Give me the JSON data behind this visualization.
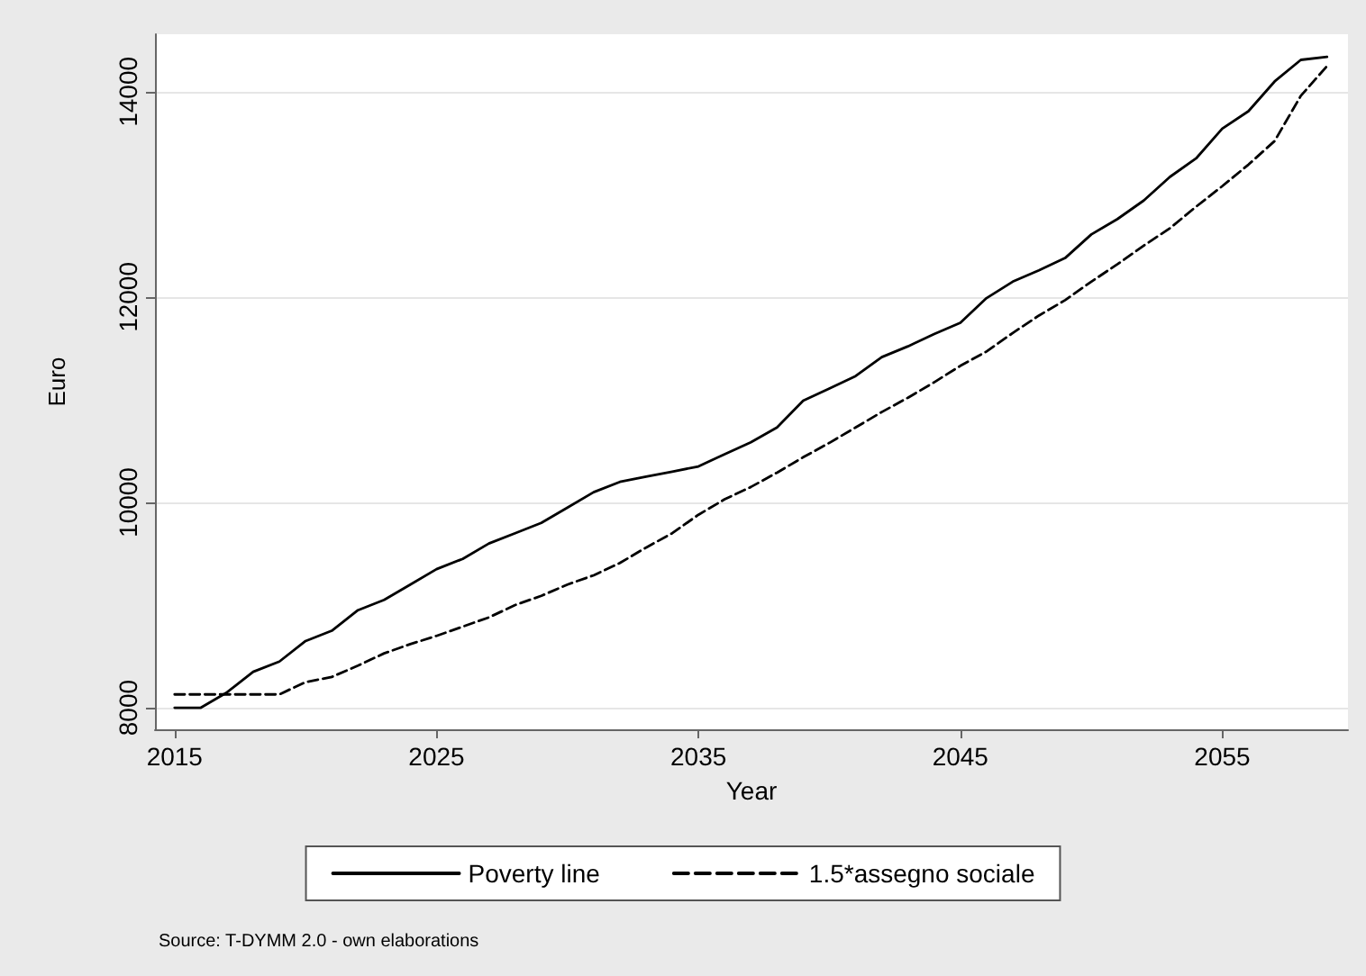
{
  "chart_data": {
    "type": "line",
    "xlabel": "Year",
    "ylabel": "Euro",
    "x": [
      2015,
      2016,
      2017,
      2018,
      2019,
      2020,
      2021,
      2022,
      2023,
      2024,
      2025,
      2026,
      2027,
      2028,
      2029,
      2030,
      2031,
      2032,
      2033,
      2034,
      2035,
      2036,
      2037,
      2038,
      2039,
      2040,
      2041,
      2042,
      2043,
      2044,
      2045,
      2046,
      2047,
      2048,
      2049,
      2050,
      2051,
      2052,
      2053,
      2054,
      2055,
      2056,
      2057,
      2058,
      2059
    ],
    "series": [
      {
        "name": "Poverty line",
        "color": "#000000",
        "line_style": "solid",
        "values": [
          8000,
          8000,
          8150,
          8350,
          8450,
          8650,
          8750,
          8950,
          9050,
          9200,
          9350,
          9450,
          9600,
          9700,
          9800,
          9950,
          10100,
          10200,
          10250,
          10300,
          10350,
          10470,
          10585,
          10730,
          10990,
          11110,
          11230,
          11415,
          11520,
          11640,
          11750,
          11990,
          12150,
          12260,
          12380,
          12610,
          12760,
          12940,
          13170,
          13350,
          13640,
          13810,
          14100,
          14310,
          14340
        ]
      },
      {
        "name": "1.5*assegno sociale",
        "color": "#000000",
        "line_style": "dashed",
        "values": [
          8130,
          8130,
          8130,
          8130,
          8130,
          8250,
          8300,
          8410,
          8530,
          8620,
          8700,
          8790,
          8880,
          9000,
          9090,
          9200,
          9290,
          9410,
          9560,
          9700,
          9880,
          10030,
          10150,
          10290,
          10440,
          10580,
          10730,
          10880,
          11020,
          11170,
          11330,
          11470,
          11650,
          11820,
          11970,
          12150,
          12320,
          12500,
          12670,
          12880,
          13080,
          13290,
          13520,
          13960,
          14250
        ]
      }
    ],
    "xlim": [
      2014.25,
      2059.8
    ],
    "xticks": [
      2015,
      2025,
      2035,
      2045,
      2055
    ],
    "ylim": [
      7790,
      14560
    ],
    "yticks": [
      8000,
      10000,
      12000,
      14000
    ],
    "grid": "y",
    "legend": "bottom",
    "marker": "none",
    "annotations": [
      "Source: T-DYMM 2.0 - own elaborations"
    ]
  }
}
